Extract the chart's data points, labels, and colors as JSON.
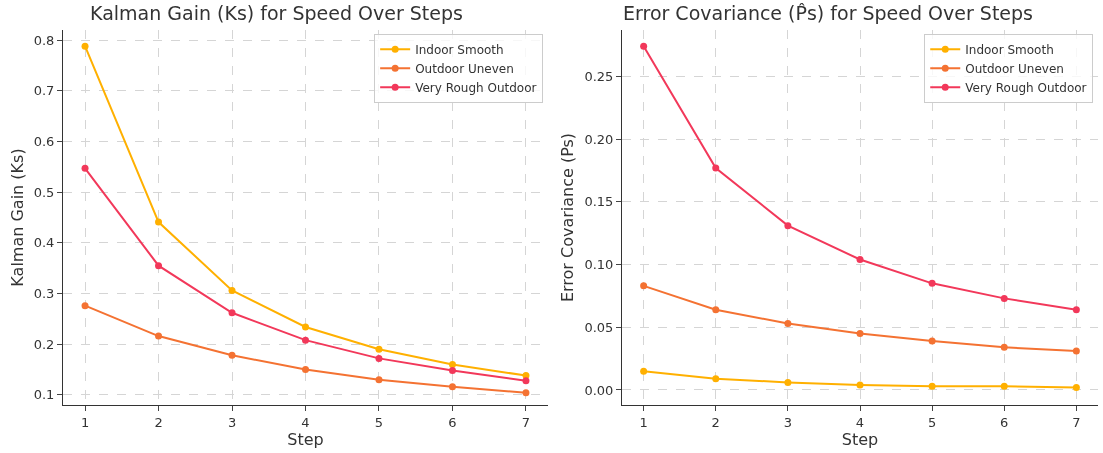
{
  "chart_data": [
    {
      "type": "line",
      "title": "Kalman Gain (Ks) for Speed Over Steps",
      "xlabel": "Step",
      "ylabel": "Kalman Gain (Ks)",
      "x": [
        1,
        2,
        3,
        4,
        5,
        6,
        7
      ],
      "xlim": [
        0.7,
        7.3
      ],
      "xticks": [
        1,
        2,
        3,
        4,
        5,
        6,
        7
      ],
      "ylim": [
        0.08,
        0.82
      ],
      "yticks": [
        0.1,
        0.2,
        0.3,
        0.4,
        0.5,
        0.6,
        0.7,
        0.8
      ],
      "grid": true,
      "legend": "top right",
      "marker": "circle",
      "line_style": "solid",
      "series": [
        {
          "name": "Indoor Smooth",
          "color": "#ffb000",
          "values": [
            0.788,
            0.441,
            0.306,
            0.234,
            0.19,
            0.16,
            0.138
          ]
        },
        {
          "name": "Outdoor Uneven",
          "color": "#f47232",
          "values": [
            0.276,
            0.216,
            0.178,
            0.15,
            0.13,
            0.116,
            0.104
          ]
        },
        {
          "name": "Very Rough Outdoor",
          "color": "#f2385a",
          "values": [
            0.547,
            0.355,
            0.262,
            0.208,
            0.172,
            0.148,
            0.128
          ]
        }
      ]
    },
    {
      "type": "line",
      "title": "Error Covariance (P̂s) for Speed Over Steps",
      "xlabel": "Step",
      "ylabel": "Error Covariance (Ps)",
      "x": [
        1,
        2,
        3,
        4,
        5,
        6,
        7
      ],
      "xlim": [
        0.7,
        7.3
      ],
      "xticks": [
        1,
        2,
        3,
        4,
        5,
        6,
        7
      ],
      "ylim": [
        -0.012,
        0.287
      ],
      "yticks": [
        {
          "value": 0,
          "label": "0.00"
        },
        {
          "value": 0.05,
          "label": "0.05"
        },
        {
          "value": 0.1,
          "label": "0.10"
        },
        {
          "value": 0.15,
          "label": "0.15"
        },
        {
          "value": 0.2,
          "label": "0.20"
        },
        {
          "value": 0.25,
          "label": "0.25"
        }
      ],
      "grid": true,
      "legend": "top right",
      "marker": "circle",
      "line_style": "solid",
      "series": [
        {
          "name": "Indoor Smooth",
          "color": "#ffb000",
          "values": [
            0.015,
            0.009,
            0.006,
            0.004,
            0.003,
            0.003,
            0.002
          ]
        },
        {
          "name": "Outdoor Uneven",
          "color": "#f47232",
          "values": [
            0.083,
            0.064,
            0.053,
            0.045,
            0.039,
            0.034,
            0.031
          ]
        },
        {
          "name": "Very Rough Outdoor",
          "color": "#f2385a",
          "values": [
            0.274,
            0.177,
            0.131,
            0.104,
            0.085,
            0.073,
            0.064
          ]
        }
      ]
    }
  ]
}
